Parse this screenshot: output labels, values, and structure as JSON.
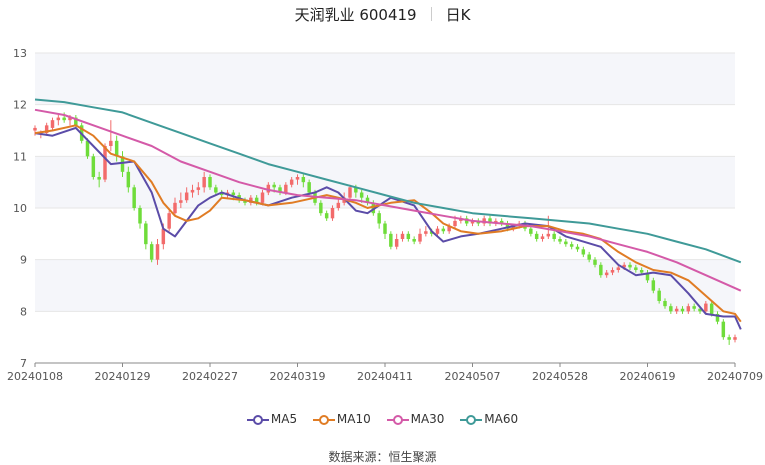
{
  "header": {
    "stock": "天润乳业 600419",
    "period": "日K"
  },
  "footer": {
    "source_label": "数据来源：",
    "source_name": "恒生聚源"
  },
  "colors": {
    "up": "#f26b6b",
    "down": "#6fdc3a",
    "grid": "#e6e6e6",
    "band": "#f5f6fa"
  },
  "chart_data": {
    "type": "candlestick",
    "title": "天润乳业 600419 日K",
    "ylim": [
      7,
      13
    ],
    "yticks": [
      7,
      8,
      9,
      10,
      11,
      12,
      13
    ],
    "x_tick_labels": [
      "20240108",
      "20240129",
      "20240227",
      "20240319",
      "20240411",
      "20240507",
      "20240528",
      "20240619",
      "20240709"
    ],
    "x_ticks_at": [
      0,
      15,
      30,
      45,
      60,
      75,
      90,
      105,
      120
    ],
    "n_days": 121,
    "grid": true,
    "legend_position": "bottom",
    "candles": [
      [
        11.5,
        11.55,
        11.4,
        11.6
      ],
      [
        11.45,
        11.45,
        11.35,
        11.5
      ],
      [
        11.45,
        11.6,
        11.4,
        11.65
      ],
      [
        11.55,
        11.7,
        11.5,
        11.75
      ],
      [
        11.7,
        11.75,
        11.6,
        11.8
      ],
      [
        11.75,
        11.7,
        11.65,
        11.85
      ],
      [
        11.7,
        11.75,
        11.6,
        11.8
      ],
      [
        11.75,
        11.6,
        11.55,
        11.8
      ],
      [
        11.6,
        11.3,
        11.25,
        11.65
      ],
      [
        11.3,
        11.0,
        10.95,
        11.35
      ],
      [
        11.0,
        10.6,
        10.55,
        11.05
      ],
      [
        10.6,
        10.55,
        10.4,
        10.7
      ],
      [
        10.55,
        11.2,
        10.5,
        11.25
      ],
      [
        11.2,
        11.3,
        11.1,
        11.7
      ],
      [
        11.3,
        11.0,
        10.9,
        11.4
      ],
      [
        11.0,
        10.7,
        10.6,
        11.1
      ],
      [
        10.7,
        10.4,
        10.3,
        10.8
      ],
      [
        10.4,
        10.0,
        9.95,
        10.45
      ],
      [
        10.0,
        9.7,
        9.6,
        10.05
      ],
      [
        9.7,
        9.3,
        9.2,
        9.75
      ],
      [
        9.3,
        9.0,
        8.95,
        9.35
      ],
      [
        9.0,
        9.3,
        8.9,
        9.4
      ],
      [
        9.3,
        9.6,
        9.2,
        9.7
      ],
      [
        9.6,
        9.9,
        9.55,
        9.95
      ],
      [
        9.9,
        10.1,
        9.85,
        10.2
      ],
      [
        10.1,
        10.15,
        10.0,
        10.3
      ],
      [
        10.15,
        10.3,
        10.1,
        10.4
      ],
      [
        10.3,
        10.35,
        10.2,
        10.45
      ],
      [
        10.35,
        10.4,
        10.25,
        10.5
      ],
      [
        10.4,
        10.6,
        10.3,
        10.7
      ],
      [
        10.6,
        10.4,
        10.35,
        10.65
      ],
      [
        10.4,
        10.3,
        10.25,
        10.45
      ],
      [
        10.3,
        10.25,
        10.2,
        10.35
      ],
      [
        10.25,
        10.3,
        10.2,
        10.35
      ],
      [
        10.3,
        10.25,
        10.15,
        10.35
      ],
      [
        10.25,
        10.15,
        10.1,
        10.3
      ],
      [
        10.15,
        10.1,
        10.05,
        10.2
      ],
      [
        10.1,
        10.2,
        10.05,
        10.25
      ],
      [
        10.2,
        10.1,
        10.05,
        10.25
      ],
      [
        10.1,
        10.3,
        10.05,
        10.35
      ],
      [
        10.3,
        10.45,
        10.25,
        10.5
      ],
      [
        10.45,
        10.4,
        10.3,
        10.5
      ],
      [
        10.4,
        10.3,
        10.25,
        10.45
      ],
      [
        10.3,
        10.45,
        10.25,
        10.5
      ],
      [
        10.45,
        10.55,
        10.4,
        10.6
      ],
      [
        10.55,
        10.6,
        10.45,
        10.65
      ],
      [
        10.6,
        10.5,
        10.4,
        10.65
      ],
      [
        10.5,
        10.3,
        10.25,
        10.55
      ],
      [
        10.3,
        10.1,
        10.05,
        10.35
      ],
      [
        10.1,
        9.9,
        9.85,
        10.15
      ],
      [
        9.9,
        9.8,
        9.75,
        9.95
      ],
      [
        9.8,
        10.0,
        9.75,
        10.05
      ],
      [
        10.0,
        10.1,
        9.95,
        10.2
      ],
      [
        10.1,
        10.2,
        10.05,
        10.3
      ],
      [
        10.2,
        10.4,
        10.15,
        10.45
      ],
      [
        10.4,
        10.3,
        10.2,
        10.45
      ],
      [
        10.3,
        10.2,
        10.1,
        10.35
      ],
      [
        10.2,
        10.1,
        10.05,
        10.25
      ],
      [
        10.1,
        9.9,
        9.85,
        10.15
      ],
      [
        9.9,
        9.7,
        9.6,
        9.95
      ],
      [
        9.7,
        9.5,
        9.4,
        9.75
      ],
      [
        9.5,
        9.25,
        9.2,
        9.55
      ],
      [
        9.25,
        9.4,
        9.2,
        9.5
      ],
      [
        9.4,
        9.5,
        9.35,
        9.55
      ],
      [
        9.5,
        9.4,
        9.35,
        9.55
      ],
      [
        9.4,
        9.35,
        9.3,
        9.45
      ],
      [
        9.35,
        9.5,
        9.3,
        9.6
      ],
      [
        9.5,
        9.55,
        9.45,
        9.65
      ],
      [
        9.55,
        9.5,
        9.45,
        9.6
      ],
      [
        9.5,
        9.6,
        9.45,
        9.65
      ],
      [
        9.6,
        9.55,
        9.5,
        9.65
      ],
      [
        9.55,
        9.65,
        9.5,
        9.7
      ],
      [
        9.65,
        9.75,
        9.6,
        9.85
      ],
      [
        9.75,
        9.8,
        9.7,
        9.85
      ],
      [
        9.8,
        9.7,
        9.65,
        9.85
      ],
      [
        9.7,
        9.75,
        9.65,
        9.8
      ],
      [
        9.75,
        9.7,
        9.65,
        9.8
      ],
      [
        9.7,
        9.8,
        9.65,
        9.85
      ],
      [
        9.8,
        9.7,
        9.65,
        9.85
      ],
      [
        9.7,
        9.75,
        9.65,
        9.8
      ],
      [
        9.75,
        9.7,
        9.65,
        9.8
      ],
      [
        9.7,
        9.6,
        9.55,
        9.75
      ],
      [
        9.6,
        9.65,
        9.55,
        9.7
      ],
      [
        9.65,
        9.7,
        9.6,
        9.75
      ],
      [
        9.7,
        9.6,
        9.55,
        9.75
      ],
      [
        9.6,
        9.5,
        9.45,
        9.65
      ],
      [
        9.5,
        9.4,
        9.35,
        9.55
      ],
      [
        9.4,
        9.45,
        9.35,
        9.5
      ],
      [
        9.45,
        9.5,
        9.4,
        9.85
      ],
      [
        9.5,
        9.4,
        9.35,
        9.55
      ],
      [
        9.4,
        9.35,
        9.3,
        9.45
      ],
      [
        9.35,
        9.3,
        9.25,
        9.4
      ],
      [
        9.3,
        9.25,
        9.2,
        9.35
      ],
      [
        9.25,
        9.2,
        9.15,
        9.3
      ],
      [
        9.2,
        9.1,
        9.05,
        9.25
      ],
      [
        9.1,
        9.0,
        8.95,
        9.15
      ],
      [
        9.0,
        8.9,
        8.85,
        9.05
      ],
      [
        8.9,
        8.7,
        8.65,
        8.95
      ],
      [
        8.7,
        8.75,
        8.65,
        8.8
      ],
      [
        8.75,
        8.8,
        8.7,
        8.85
      ],
      [
        8.8,
        8.85,
        8.75,
        8.9
      ],
      [
        8.85,
        8.9,
        8.8,
        8.95
      ],
      [
        8.9,
        8.85,
        8.8,
        8.95
      ],
      [
        8.85,
        8.8,
        8.75,
        8.9
      ],
      [
        8.8,
        8.75,
        8.7,
        8.85
      ],
      [
        8.75,
        8.6,
        8.55,
        8.8
      ],
      [
        8.6,
        8.4,
        8.35,
        8.65
      ],
      [
        8.4,
        8.2,
        8.15,
        8.45
      ],
      [
        8.2,
        8.1,
        8.05,
        8.25
      ],
      [
        8.1,
        8.0,
        7.95,
        8.15
      ],
      [
        8.0,
        8.05,
        7.95,
        8.1
      ],
      [
        8.05,
        8.0,
        7.95,
        8.1
      ],
      [
        8.0,
        8.1,
        7.95,
        8.15
      ],
      [
        8.1,
        8.05,
        8.0,
        8.15
      ],
      [
        8.05,
        8.0,
        7.95,
        8.1
      ],
      [
        8.0,
        8.15,
        7.95,
        8.2
      ],
      [
        8.15,
        7.95,
        7.9,
        8.2
      ],
      [
        7.95,
        7.8,
        7.75,
        8.0
      ],
      [
        7.8,
        7.5,
        7.45,
        7.85
      ],
      [
        7.5,
        7.45,
        7.35,
        7.55
      ],
      [
        7.45,
        7.5,
        7.4,
        7.55
      ]
    ],
    "series": [
      {
        "name": "MA5",
        "color": "#5b4ca8",
        "points": [
          [
            0,
            11.45
          ],
          [
            3,
            11.4
          ],
          [
            7,
            11.55
          ],
          [
            10,
            11.2
          ],
          [
            13,
            10.85
          ],
          [
            17,
            10.9
          ],
          [
            20,
            10.3
          ],
          [
            22,
            9.6
          ],
          [
            24,
            9.45
          ],
          [
            26,
            9.75
          ],
          [
            28,
            10.05
          ],
          [
            30,
            10.2
          ],
          [
            32,
            10.3
          ],
          [
            36,
            10.15
          ],
          [
            40,
            10.05
          ],
          [
            44,
            10.2
          ],
          [
            48,
            10.3
          ],
          [
            50,
            10.4
          ],
          [
            52,
            10.3
          ],
          [
            55,
            9.95
          ],
          [
            57,
            9.9
          ],
          [
            59,
            10.05
          ],
          [
            61,
            10.2
          ],
          [
            65,
            10.05
          ],
          [
            68,
            9.55
          ],
          [
            70,
            9.35
          ],
          [
            73,
            9.45
          ],
          [
            76,
            9.5
          ],
          [
            80,
            9.6
          ],
          [
            84,
            9.7
          ],
          [
            88,
            9.65
          ],
          [
            91,
            9.45
          ],
          [
            94,
            9.35
          ],
          [
            97,
            9.25
          ],
          [
            100,
            8.9
          ],
          [
            103,
            8.7
          ],
          [
            106,
            8.75
          ],
          [
            109,
            8.7
          ],
          [
            112,
            8.35
          ],
          [
            115,
            7.95
          ],
          [
            118,
            7.9
          ],
          [
            120,
            7.9
          ],
          [
            121,
            7.65
          ]
        ]
      },
      {
        "name": "MA10",
        "color": "#e07c24",
        "points": [
          [
            0,
            11.45
          ],
          [
            3,
            11.5
          ],
          [
            7,
            11.6
          ],
          [
            10,
            11.4
          ],
          [
            13,
            11.05
          ],
          [
            17,
            10.9
          ],
          [
            20,
            10.5
          ],
          [
            22,
            10.1
          ],
          [
            24,
            9.85
          ],
          [
            26,
            9.75
          ],
          [
            28,
            9.8
          ],
          [
            30,
            9.95
          ],
          [
            32,
            10.2
          ],
          [
            36,
            10.15
          ],
          [
            40,
            10.05
          ],
          [
            44,
            10.1
          ],
          [
            48,
            10.2
          ],
          [
            50,
            10.25
          ],
          [
            52,
            10.2
          ],
          [
            55,
            10.1
          ],
          [
            57,
            10.0
          ],
          [
            59,
            10.05
          ],
          [
            61,
            10.1
          ],
          [
            65,
            10.15
          ],
          [
            68,
            9.9
          ],
          [
            70,
            9.7
          ],
          [
            73,
            9.55
          ],
          [
            76,
            9.5
          ],
          [
            80,
            9.55
          ],
          [
            84,
            9.65
          ],
          [
            88,
            9.65
          ],
          [
            91,
            9.55
          ],
          [
            94,
            9.5
          ],
          [
            97,
            9.4
          ],
          [
            100,
            9.15
          ],
          [
            103,
            8.95
          ],
          [
            106,
            8.8
          ],
          [
            109,
            8.75
          ],
          [
            112,
            8.6
          ],
          [
            115,
            8.3
          ],
          [
            118,
            8.0
          ],
          [
            120,
            7.95
          ],
          [
            121,
            7.8
          ]
        ]
      },
      {
        "name": "MA30",
        "color": "#d45aa8",
        "points": [
          [
            0,
            11.9
          ],
          [
            5,
            11.8
          ],
          [
            10,
            11.6
          ],
          [
            15,
            11.4
          ],
          [
            20,
            11.2
          ],
          [
            25,
            10.9
          ],
          [
            30,
            10.7
          ],
          [
            35,
            10.5
          ],
          [
            40,
            10.35
          ],
          [
            45,
            10.25
          ],
          [
            50,
            10.2
          ],
          [
            55,
            10.15
          ],
          [
            60,
            10.05
          ],
          [
            65,
            9.95
          ],
          [
            70,
            9.85
          ],
          [
            75,
            9.75
          ],
          [
            80,
            9.7
          ],
          [
            85,
            9.65
          ],
          [
            90,
            9.55
          ],
          [
            95,
            9.45
          ],
          [
            100,
            9.3
          ],
          [
            105,
            9.15
          ],
          [
            110,
            8.95
          ],
          [
            115,
            8.7
          ],
          [
            121,
            8.4
          ]
        ]
      },
      {
        "name": "MA60",
        "color": "#3f9a98",
        "points": [
          [
            0,
            12.1
          ],
          [
            5,
            12.05
          ],
          [
            10,
            11.95
          ],
          [
            15,
            11.85
          ],
          [
            20,
            11.65
          ],
          [
            25,
            11.45
          ],
          [
            30,
            11.25
          ],
          [
            35,
            11.05
          ],
          [
            40,
            10.85
          ],
          [
            45,
            10.7
          ],
          [
            50,
            10.55
          ],
          [
            55,
            10.4
          ],
          [
            60,
            10.25
          ],
          [
            65,
            10.1
          ],
          [
            70,
            10.0
          ],
          [
            75,
            9.9
          ],
          [
            80,
            9.85
          ],
          [
            85,
            9.8
          ],
          [
            90,
            9.75
          ],
          [
            95,
            9.7
          ],
          [
            100,
            9.6
          ],
          [
            105,
            9.5
          ],
          [
            110,
            9.35
          ],
          [
            115,
            9.2
          ],
          [
            121,
            8.95
          ]
        ]
      }
    ]
  }
}
